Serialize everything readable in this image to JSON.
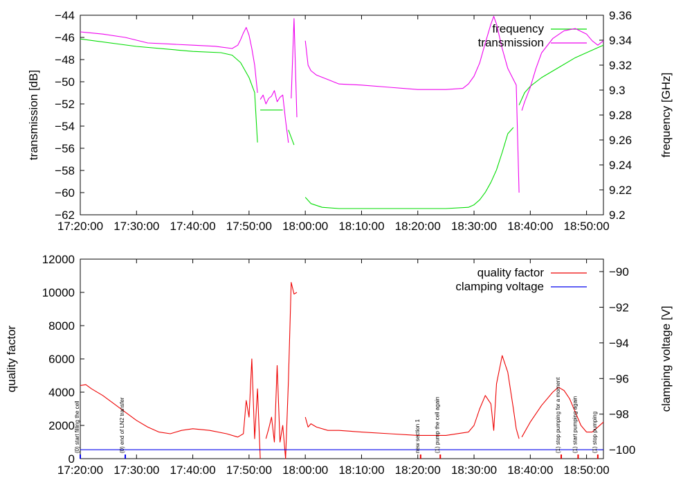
{
  "chart_data": [
    {
      "type": "line",
      "xlabel": "",
      "ylabel": "transmission [dB]",
      "y2label": "frequency [GHz]",
      "x_ticks": [
        "17:20:00",
        "17:30:00",
        "17:40:00",
        "17:50:00",
        "18:00:00",
        "18:10:00",
        "18:20:00",
        "18:30:00",
        "18:40:00",
        "18:50:00"
      ],
      "xlim": [
        "17:20:00",
        "18:53:00"
      ],
      "ylim": [
        -62,
        -44
      ],
      "y_ticks": [
        -44,
        -46,
        -48,
        -50,
        -52,
        -54,
        -56,
        -58,
        -60,
        -62
      ],
      "y2lim": [
        9.2,
        9.36
      ],
      "y2_ticks": [
        9.36,
        9.34,
        9.32,
        9.3,
        9.28,
        9.26,
        9.24,
        9.22,
        9.2
      ],
      "legend_position": "top-right",
      "series": [
        {
          "name": "frequency",
          "axis": "y2",
          "color": "#00dd00",
          "segments": [
            {
              "x": [
                "17:20:00",
                "17:30:00",
                "17:40:00",
                "17:45:00",
                "17:47:00",
                "17:48:30",
                "17:50:00",
                "17:51:00",
                "17:51:30"
              ],
              "y": [
                9.341,
                9.335,
                9.331,
                9.33,
                9.328,
                9.322,
                9.31,
                9.298,
                9.258
              ]
            },
            {
              "x": [
                "17:52:00",
                "17:56:00"
              ],
              "y": [
                9.284,
                9.284
              ]
            },
            {
              "x": [
                "17:57:00",
                "17:58:00"
              ],
              "y": [
                9.268,
                9.256
              ]
            },
            {
              "x": [
                "18:00:00",
                "18:01:00",
                "18:03:00",
                "18:06:00",
                "18:10:00",
                "18:20:00",
                "18:25:00",
                "18:29:00",
                "18:30:00",
                "18:31:00",
                "18:32:00",
                "18:33:00",
                "18:34:00",
                "18:35:00",
                "18:36:00",
                "18:37:00"
              ],
              "y": [
                9.214,
                9.209,
                9.206,
                9.205,
                9.205,
                9.205,
                9.205,
                9.206,
                9.208,
                9.212,
                9.218,
                9.226,
                9.236,
                9.25,
                9.265,
                9.27
              ]
            },
            {
              "x": [
                "18:38:00",
                "18:39:00",
                "18:40:00",
                "18:42:00",
                "18:45:00",
                "18:48:00",
                "18:52:00",
                "18:53:00"
              ],
              "y": [
                9.288,
                9.298,
                9.303,
                9.31,
                9.318,
                9.326,
                9.334,
                9.336
              ]
            }
          ]
        },
        {
          "name": "transmission",
          "axis": "y",
          "color": "#ee00ee",
          "segments": [
            {
              "x": [
                "17:20:00",
                "17:24:00",
                "17:28:00",
                "17:32:00",
                "17:36:00",
                "17:40:00",
                "17:44:00",
                "17:47:00",
                "17:48:00",
                "17:48:30",
                "17:49:00",
                "17:49:30",
                "17:50:00",
                "17:50:30",
                "17:51:00",
                "17:51:30"
              ],
              "y": [
                -45.5,
                -45.7,
                -46.0,
                -46.5,
                -46.6,
                -46.7,
                -46.8,
                -47.0,
                -46.7,
                -46.2,
                -45.6,
                -45.1,
                -45.8,
                -47.0,
                -48.5,
                -51.0
              ]
            },
            {
              "x": [
                "17:52:00",
                "17:52:30",
                "17:53:00",
                "17:53:30",
                "17:54:00",
                "17:54:30",
                "17:55:00",
                "17:55:30",
                "17:56:00",
                "17:56:30",
                "17:57:00"
              ],
              "y": [
                -51.6,
                -51.2,
                -52.0,
                -51.5,
                -51.3,
                -50.8,
                -51.8,
                -51.4,
                -51.2,
                -53.5,
                -55.5
              ]
            },
            {
              "x": [
                "17:57:30",
                "17:58:00",
                "17:58:30"
              ],
              "y": [
                -51.5,
                -44.3,
                -53.2
              ]
            },
            {
              "x": [
                "18:00:00",
                "18:00:30",
                "18:01:00",
                "18:02:00",
                "18:04:00",
                "18:06:00",
                "18:10:00",
                "18:15:00",
                "18:20:00",
                "18:25:00",
                "18:28:00",
                "18:29:00",
                "18:30:00",
                "18:31:00",
                "18:32:00",
                "18:33:00",
                "18:33:30",
                "18:34:00",
                "18:35:00",
                "18:36:00",
                "18:37:00",
                "18:37:30",
                "18:38:00"
              ],
              "y": [
                -46.3,
                -48.5,
                -49.0,
                -49.4,
                -49.8,
                -50.2,
                -50.3,
                -50.5,
                -50.7,
                -50.7,
                -50.6,
                -50.2,
                -49.5,
                -48.3,
                -46.5,
                -44.8,
                -44.1,
                -44.8,
                -47.0,
                -48.8,
                -49.8,
                -50.3,
                -60.0
              ]
            },
            {
              "x": [
                "18:38:30",
                "18:39:00",
                "18:40:00",
                "18:41:00",
                "18:42:00",
                "18:44:00",
                "18:46:00",
                "18:48:00",
                "18:50:00",
                "18:51:00",
                "18:52:00",
                "18:53:00"
              ],
              "y": [
                -52.6,
                -51.8,
                -50.5,
                -48.8,
                -47.4,
                -46.1,
                -45.4,
                -45.2,
                -45.7,
                -46.3,
                -46.7,
                -46.3
              ]
            }
          ]
        }
      ]
    },
    {
      "type": "line",
      "xlabel": "",
      "ylabel": "quality factor",
      "y2label": "clamping voltage [V]",
      "x_ticks": [
        "17:20:00",
        "17:30:00",
        "17:40:00",
        "17:50:00",
        "18:00:00",
        "18:10:00",
        "18:20:00",
        "18:30:00",
        "18:40:00",
        "18:50:00"
      ],
      "xlim": [
        "17:20:00",
        "18:53:00"
      ],
      "ylim": [
        0,
        12000
      ],
      "y_ticks": [
        0,
        2000,
        4000,
        6000,
        8000,
        10000,
        12000
      ],
      "y2lim": [
        -100.5,
        -89.3
      ],
      "y2_ticks": [
        -90,
        -92,
        -94,
        -96,
        -98,
        -100
      ],
      "legend_position": "top-right",
      "series": [
        {
          "name": "quality factor",
          "axis": "y",
          "color": "#ee0000",
          "segments": [
            {
              "x": [
                "17:20:00",
                "17:21:00",
                "17:22:00",
                "17:24:00",
                "17:26:00",
                "17:28:00",
                "17:30:00",
                "17:32:00",
                "17:34:00",
                "17:36:00",
                "17:38:00",
                "17:40:00",
                "17:43:00",
                "17:46:00",
                "17:48:00",
                "17:49:00",
                "17:49:30",
                "17:50:00",
                "17:50:30",
                "17:51:00",
                "17:51:30",
                "17:52:00"
              ],
              "y": [
                4400,
                4450,
                4200,
                3800,
                3300,
                2800,
                2300,
                1900,
                1600,
                1500,
                1700,
                1800,
                1700,
                1500,
                1300,
                1500,
                3500,
                2500,
                6000,
                1200,
                4200,
                0
              ]
            },
            {
              "x": [
                "17:53:00",
                "17:53:30",
                "17:54:00",
                "17:54:30",
                "17:55:00",
                "17:55:30",
                "17:56:00",
                "17:56:30",
                "17:57:00",
                "17:57:30",
                "17:58:00",
                "17:58:30"
              ],
              "y": [
                1200,
                1800,
                2500,
                1000,
                5600,
                1000,
                2000,
                0,
                4700,
                10600,
                9900,
                10000
              ]
            },
            {
              "x": [
                "18:00:00",
                "18:00:30",
                "18:01:00",
                "18:02:00",
                "18:04:00",
                "18:06:00",
                "18:10:00",
                "18:15:00",
                "18:20:00",
                "18:25:00",
                "18:29:00",
                "18:30:00",
                "18:31:00",
                "18:32:00",
                "18:33:00",
                "18:33:30",
                "18:34:00",
                "18:35:00",
                "18:36:00",
                "18:37:00",
                "18:37:30",
                "18:38:00"
              ],
              "y": [
                2500,
                1900,
                2100,
                1900,
                1700,
                1700,
                1600,
                1500,
                1400,
                1400,
                1600,
                2000,
                3000,
                3800,
                3300,
                1700,
                4500,
                6200,
                5200,
                3000,
                1800,
                1200
              ]
            },
            {
              "x": [
                "18:38:30",
                "18:40:00",
                "18:42:00",
                "18:44:00",
                "18:45:00",
                "18:46:00",
                "18:47:00",
                "18:48:00",
                "18:49:00",
                "18:50:00",
                "18:51:00",
                "18:52:00",
                "18:53:00"
              ],
              "y": [
                1300,
                2200,
                3200,
                4000,
                4300,
                4100,
                3600,
                2800,
                2000,
                1600,
                1600,
                1900,
                2200
              ]
            }
          ]
        },
        {
          "name": "clamping voltage",
          "axis": "y2",
          "color": "#0000ee",
          "segments": [
            {
              "x": [
                "17:20:00",
                "18:53:00"
              ],
              "y": [
                -100,
                -100
              ]
            }
          ]
        }
      ],
      "annotations": [
        {
          "time": "17:20:00",
          "text": "(0) start filling the cell",
          "color": "#0000ee"
        },
        {
          "time": "17:28:00",
          "text": "(0) end of LN2 transfer",
          "color": "#0000ee"
        },
        {
          "time": "18:20:30",
          "text": "new section 1",
          "color": "#ee0000"
        },
        {
          "time": "18:24:00",
          "text": "(1) pump the cell again",
          "color": "#ee0000"
        },
        {
          "time": "18:45:30",
          "text": "(1) stop pumping for a moment",
          "color": "#ee0000"
        },
        {
          "time": "18:48:30",
          "text": "(1) start pumping again",
          "color": "#ee0000"
        },
        {
          "time": "18:52:00",
          "text": "(1) stop pumping",
          "color": "#ee0000"
        }
      ]
    }
  ]
}
